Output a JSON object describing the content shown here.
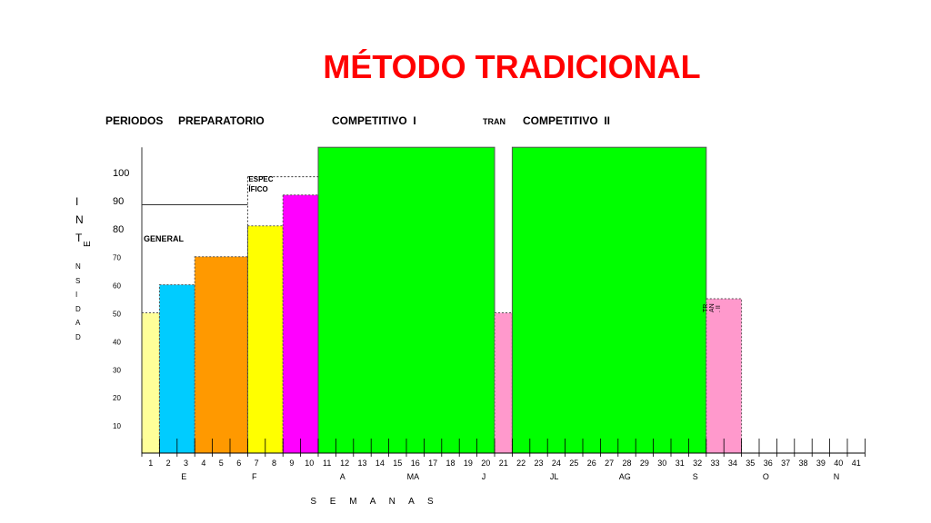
{
  "chart_data": {
    "type": "bar",
    "title": "MÉTODO TRADICIONAL",
    "xlabel": "S E M A N A S",
    "ylabel_letters": [
      "I",
      "N",
      "T",
      "E",
      "N",
      "S",
      "I",
      "D",
      "A",
      "D"
    ],
    "periods_label": "PERIODOS",
    "periods": [
      {
        "label": "PREPARATORIO",
        "start": 1,
        "end": 10
      },
      {
        "label": "COMPETITIVO  I",
        "start": 11,
        "end": 20
      },
      {
        "label": "TRAN",
        "start": 21,
        "end": 21
      },
      {
        "label": "COMPETITIVO  II",
        "start": 22,
        "end": 32
      }
    ],
    "phase_labels": [
      {
        "label": "GENERAL",
        "start": 1,
        "end": 6,
        "level": 88.5
      },
      {
        "label": "ESPEC ÍFICO",
        "start": 7,
        "end": 10,
        "level": 98.5
      }
    ],
    "y_ticks": [
      100,
      90,
      80,
      70,
      60,
      50,
      40,
      30,
      20,
      10
    ],
    "ylim": [
      0,
      109
    ],
    "x_ticks": [
      "1",
      "2",
      "3",
      "4",
      "5",
      "6",
      "7",
      "8",
      "9",
      "10",
      "11",
      "12",
      "13",
      "14",
      "15",
      "16",
      "17",
      "18",
      "19",
      "20",
      "21",
      "22",
      "23",
      "24",
      "25",
      "26",
      "27",
      "28",
      "29",
      "30",
      "31",
      "32",
      "33",
      "34",
      "35",
      "36",
      "37",
      "38",
      "39",
      "40",
      "41"
    ],
    "months": [
      {
        "label": "E",
        "at": 4
      },
      {
        "label": "F",
        "at": 8
      },
      {
        "label": "A",
        "at": 13
      },
      {
        "label": "MA",
        "at": 17
      },
      {
        "label": "J",
        "at": 21
      },
      {
        "label": "JL",
        "at": 25
      },
      {
        "label": "AG",
        "at": 29
      },
      {
        "label": "S",
        "at": 33
      },
      {
        "label": "O",
        "at": 37
      },
      {
        "label": "N",
        "at": 41
      }
    ],
    "bars": [
      {
        "start": 1,
        "end": 1,
        "value": 50,
        "color": "#ffff99"
      },
      {
        "start": 2,
        "end": 3,
        "value": 60,
        "color": "#00ccff"
      },
      {
        "start": 4,
        "end": 6,
        "value": 70,
        "color": "#ff9900"
      },
      {
        "start": 7,
        "end": 8,
        "value": 81,
        "color": "#ffff00"
      },
      {
        "start": 9,
        "end": 10,
        "value": 92,
        "color": "#ff00ff"
      },
      {
        "start": 11,
        "end": 20,
        "value": 109,
        "color": "#00ff00"
      },
      {
        "start": 21,
        "end": 21,
        "value": 50,
        "color": "#ff99cc"
      },
      {
        "start": 22,
        "end": 32,
        "value": 109,
        "color": "#00ff00"
      },
      {
        "start": 33,
        "end": 34,
        "value": 55,
        "color": "#ff99cc"
      }
    ],
    "bar_annotation": {
      "lines": [
        "TR",
        "AN",
        ". II"
      ],
      "bar": 33
    }
  }
}
